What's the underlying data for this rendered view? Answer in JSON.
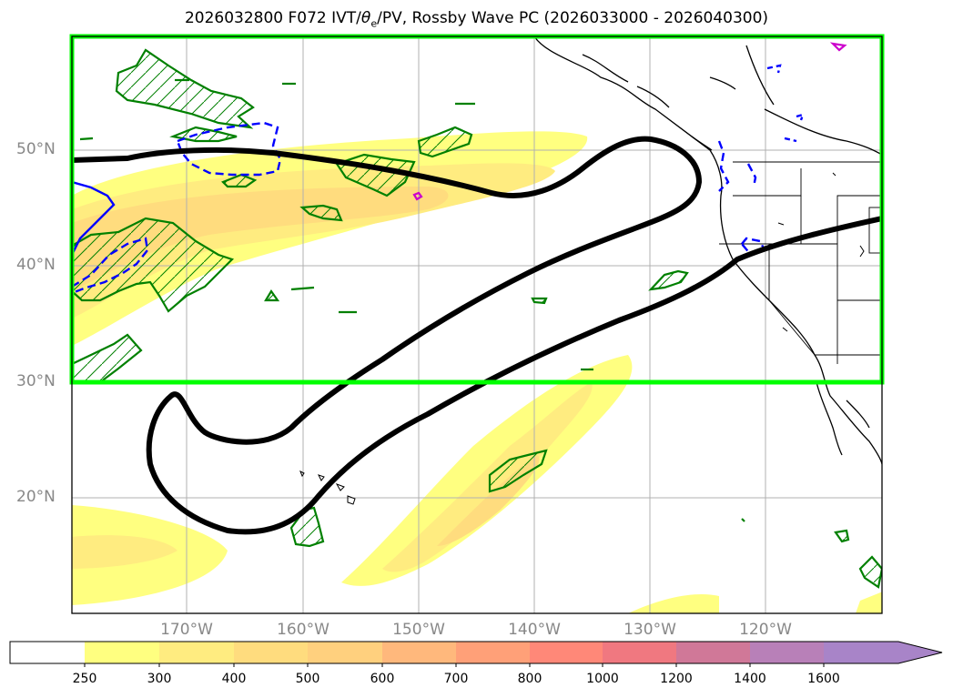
{
  "title": {
    "prefix": "2026032800 F072 IVT/",
    "theta": "θ",
    "theta_sub": "e",
    "suffix": "/PV, Rossby Wave PC (2026033000 - 2026040300)"
  },
  "lat_labels": [
    "50°N",
    "40°N",
    "30°N",
    "20°N"
  ],
  "lon_labels": [
    "170°W",
    "160°W",
    "150°W",
    "140°W",
    "130°W",
    "120°W"
  ],
  "colorbar": {
    "ticks": [
      "250",
      "300",
      "400",
      "500",
      "600",
      "700",
      "800",
      "1000",
      "1200",
      "1400",
      "1600"
    ],
    "colors": [
      "#ffffff",
      "#ffff80",
      "#ffec80",
      "#ffdc7e",
      "#ffd07e",
      "#ffb87c",
      "#ffa078",
      "#ff8878",
      "#f07880",
      "#d07898",
      "#b880b8",
      "#a884c8"
    ]
  },
  "colors": {
    "region_box": "#00ff00",
    "contour_black": "#000000",
    "pv_green": "#008000",
    "theta_blue": "#0000ff",
    "magenta": "#cc00cc"
  }
}
